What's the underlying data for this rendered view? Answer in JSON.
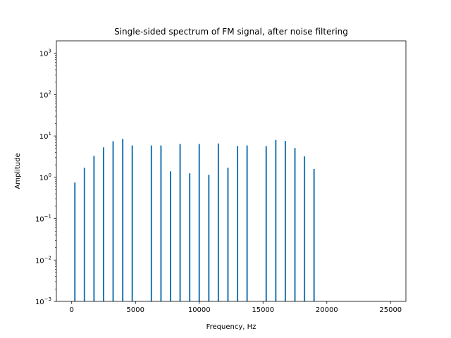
{
  "chart_data": {
    "type": "bar",
    "title": "Single-sided spectrum of FM signal, after noise filtering",
    "xlabel": "Frequency, Hz",
    "ylabel": "Amplitude",
    "x_scale": "linear",
    "y_scale": "log",
    "xlim": [
      -1200,
      26200
    ],
    "ylim": [
      0.001,
      2000
    ],
    "x_ticks": [
      0,
      5000,
      10000,
      15000,
      20000,
      25000
    ],
    "x_tick_labels": [
      "0",
      "5000",
      "10000",
      "15000",
      "20000",
      "25000"
    ],
    "y_ticks": [
      0.001,
      0.01,
      0.1,
      1,
      10,
      100,
      1000
    ],
    "y_tick_labels": [
      {
        "base": "10",
        "exp": "−3"
      },
      {
        "base": "10",
        "exp": "−2"
      },
      {
        "base": "10",
        "exp": "−1"
      },
      {
        "base": "10",
        "exp": "0"
      },
      {
        "base": "10",
        "exp": "1"
      },
      {
        "base": "10",
        "exp": "2"
      },
      {
        "base": "10",
        "exp": "3"
      }
    ],
    "grid": false,
    "legend": "none",
    "series_color": "#1f77b4",
    "x": [
      250,
      1000,
      1750,
      2500,
      3250,
      4000,
      4750,
      6250,
      7000,
      7750,
      8500,
      9250,
      10000,
      10750,
      11500,
      12250,
      13000,
      13750,
      15250,
      16000,
      16750,
      17500,
      18250,
      19000
    ],
    "values": [
      0.75,
      1.7,
      3.3,
      5.3,
      7.5,
      8.5,
      5.9,
      5.9,
      5.9,
      1.4,
      6.4,
      1.25,
      6.4,
      1.15,
      6.6,
      1.7,
      5.7,
      5.9,
      5.7,
      8.0,
      7.6,
      5.1,
      3.2,
      1.6
    ]
  }
}
